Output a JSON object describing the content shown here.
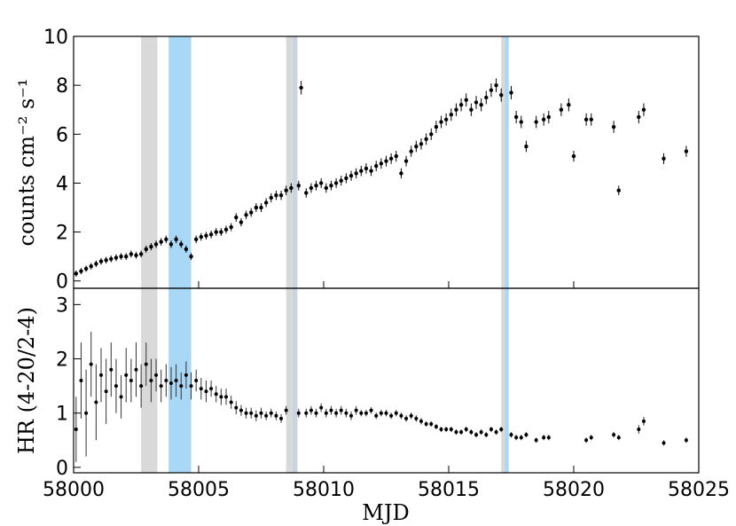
{
  "chart_data": [
    {
      "type": "scatter",
      "panel": "top",
      "ylabel": "counts cm⁻² s⁻¹",
      "xlim": [
        58000,
        58025
      ],
      "ylim": [
        -0.3,
        10
      ],
      "yticks": [
        0,
        2,
        4,
        6,
        8,
        10
      ],
      "marker_color": "#000000",
      "bands": [
        {
          "x0": 58002.7,
          "x1": 58003.35,
          "color": "#d9d9d9"
        },
        {
          "x0": 58003.8,
          "x1": 58004.7,
          "color": "#a8d8f5"
        },
        {
          "x0": 58008.5,
          "x1": 58008.75,
          "color": "#d9d9d9"
        },
        {
          "x0": 58008.75,
          "x1": 58008.95,
          "color": "#c8d4e0"
        },
        {
          "x0": 58017.1,
          "x1": 58017.25,
          "color": "#d9d9d9"
        },
        {
          "x0": 58017.25,
          "x1": 58017.4,
          "color": "#a8d8f5"
        }
      ],
      "series": [
        {
          "x": [
            58000.1,
            58000.3,
            58000.5,
            58000.7,
            58000.9,
            58001.1,
            58001.3,
            58001.5,
            58001.7,
            58001.9,
            58002.1,
            58002.3,
            58002.5,
            58002.7,
            58002.9,
            58003.1,
            58003.3,
            58003.5,
            58003.7,
            58003.9,
            58004.1,
            58004.3,
            58004.5,
            58004.7,
            58004.9,
            58005.1,
            58005.3,
            58005.5,
            58005.7,
            58005.9,
            58006.1,
            58006.3,
            58006.5,
            58006.7,
            58006.9,
            58007.1,
            58007.3,
            58007.5,
            58007.7,
            58007.9,
            58008.1,
            58008.3,
            58008.5,
            58008.7,
            58009.0,
            58009.1,
            58009.3,
            58009.5,
            58009.7,
            58009.9,
            58010.1,
            58010.3,
            58010.5,
            58010.7,
            58010.9,
            58011.1,
            58011.3,
            58011.5,
            58011.7,
            58011.9,
            58012.1,
            58012.3,
            58012.5,
            58012.7,
            58012.9,
            58013.1,
            58013.3,
            58013.5,
            58013.7,
            58013.9,
            58014.1,
            58014.3,
            58014.5,
            58014.7,
            58014.9,
            58015.1,
            58015.3,
            58015.5,
            58015.7,
            58015.9,
            58016.1,
            58016.3,
            58016.5,
            58016.7,
            58016.9,
            58017.1,
            58017.5,
            58017.7,
            58017.9,
            58018.1,
            58018.5,
            58018.8,
            58019.0,
            58019.5,
            58019.8,
            58020.0,
            58020.5,
            58020.7,
            58021.6,
            58021.8,
            58022.6,
            58022.8,
            58023.6,
            58024.5
          ],
          "y": [
            0.3,
            0.4,
            0.5,
            0.6,
            0.7,
            0.8,
            0.85,
            0.9,
            0.95,
            1.0,
            1.0,
            1.1,
            1.05,
            1.1,
            1.3,
            1.4,
            1.5,
            1.6,
            1.7,
            1.5,
            1.7,
            1.5,
            1.3,
            1.0,
            1.7,
            1.8,
            1.85,
            1.9,
            2.0,
            2.0,
            2.1,
            2.2,
            2.6,
            2.4,
            2.7,
            2.8,
            3.0,
            3.0,
            3.2,
            3.4,
            3.5,
            3.5,
            3.7,
            3.8,
            3.9,
            7.9,
            3.6,
            3.8,
            3.9,
            4.0,
            3.8,
            3.9,
            4.0,
            4.1,
            4.2,
            4.3,
            4.4,
            4.5,
            4.6,
            4.5,
            4.7,
            4.8,
            4.9,
            5.0,
            5.1,
            4.4,
            4.9,
            5.3,
            5.5,
            5.6,
            5.8,
            6.0,
            6.3,
            6.5,
            6.6,
            6.8,
            7.0,
            7.2,
            7.4,
            7.0,
            7.3,
            7.2,
            7.5,
            7.8,
            8.0,
            7.6,
            7.7,
            6.7,
            6.5,
            5.5,
            6.5,
            6.6,
            6.7,
            7.0,
            7.2,
            5.1,
            6.6,
            6.6,
            6.3,
            3.7,
            6.7,
            7.0,
            5.0,
            5.3
          ]
        }
      ]
    },
    {
      "type": "scatter",
      "panel": "bottom",
      "xlabel": "MJD",
      "ylabel": "HR (4-20/2-4)",
      "xlim": [
        58000,
        58025
      ],
      "ylim": [
        -0.1,
        3.3
      ],
      "yticks": [
        0,
        1,
        2,
        3
      ],
      "xticks": [
        58000,
        58005,
        58010,
        58015,
        58020,
        58025
      ],
      "marker_color": "#000000",
      "series": [
        {
          "x": [
            58000.1,
            58000.3,
            58000.5,
            58000.7,
            58000.9,
            58001.1,
            58001.3,
            58001.5,
            58001.7,
            58001.9,
            58002.1,
            58002.3,
            58002.5,
            58002.7,
            58002.9,
            58003.1,
            58003.3,
            58003.5,
            58003.7,
            58003.9,
            58004.1,
            58004.3,
            58004.5,
            58004.7,
            58004.9,
            58005.1,
            58005.3,
            58005.5,
            58005.7,
            58005.9,
            58006.1,
            58006.3,
            58006.5,
            58006.7,
            58006.9,
            58007.1,
            58007.3,
            58007.5,
            58007.7,
            58007.9,
            58008.1,
            58008.3,
            58008.5,
            58009.0,
            58009.3,
            58009.5,
            58009.7,
            58009.9,
            58010.1,
            58010.3,
            58010.5,
            58010.7,
            58010.9,
            58011.1,
            58011.3,
            58011.5,
            58011.7,
            58011.9,
            58012.1,
            58012.3,
            58012.5,
            58012.7,
            58012.9,
            58013.1,
            58013.3,
            58013.5,
            58013.7,
            58013.9,
            58014.1,
            58014.3,
            58014.5,
            58014.7,
            58014.9,
            58015.1,
            58015.3,
            58015.5,
            58015.7,
            58015.9,
            58016.1,
            58016.3,
            58016.5,
            58016.7,
            58016.9,
            58017.1,
            58017.5,
            58017.7,
            58017.9,
            58018.1,
            58018.5,
            58018.8,
            58019.0,
            58020.5,
            58020.7,
            58021.6,
            58021.8,
            58022.6,
            58022.8,
            58023.6,
            58024.5
          ],
          "y": [
            0.7,
            1.6,
            1.0,
            1.9,
            1.2,
            1.7,
            1.4,
            1.8,
            1.5,
            1.3,
            1.7,
            1.6,
            1.8,
            1.5,
            1.9,
            1.6,
            1.7,
            1.5,
            1.6,
            1.55,
            1.6,
            1.5,
            1.7,
            1.5,
            1.6,
            1.45,
            1.4,
            1.45,
            1.35,
            1.3,
            1.3,
            1.2,
            1.1,
            1.05,
            1.0,
            1.0,
            0.95,
            1.0,
            0.95,
            1.0,
            0.95,
            0.9,
            1.05,
            1.0,
            1.0,
            1.05,
            1.0,
            1.1,
            1.0,
            1.05,
            1.0,
            1.05,
            1.0,
            0.95,
            1.05,
            1.0,
            1.0,
            1.05,
            0.95,
            1.0,
            1.0,
            0.95,
            1.0,
            0.95,
            0.9,
            0.95,
            0.9,
            0.85,
            0.8,
            0.8,
            0.75,
            0.7,
            0.7,
            0.7,
            0.65,
            0.65,
            0.7,
            0.65,
            0.6,
            0.65,
            0.6,
            0.7,
            0.65,
            0.7,
            0.6,
            0.55,
            0.55,
            0.6,
            0.5,
            0.55,
            0.55,
            0.5,
            0.55,
            0.6,
            0.55,
            0.7,
            0.85,
            0.45,
            0.5
          ],
          "err": [
            0.6,
            0.7,
            0.8,
            0.6,
            0.7,
            0.5,
            0.6,
            0.5,
            0.5,
            0.4,
            0.5,
            0.4,
            0.5,
            0.4,
            0.4,
            0.4,
            0.3,
            0.3,
            0.3,
            0.3,
            0.3,
            0.25,
            0.25,
            0.25,
            0.2,
            0.2,
            0.2,
            0.15,
            0.15,
            0.15,
            0.15,
            0.12,
            0.12,
            0.1,
            0.1,
            0.1,
            0.1,
            0.1,
            0.08,
            0.08,
            0.08,
            0.08,
            0.08,
            0.08,
            0.08,
            0.08,
            0.08,
            0.08,
            0.08,
            0.08,
            0.08,
            0.08,
            0.08,
            0.08,
            0.08,
            0.06,
            0.06,
            0.06,
            0.06,
            0.06,
            0.06,
            0.06,
            0.06,
            0.06,
            0.06,
            0.06,
            0.06,
            0.06,
            0.05,
            0.05,
            0.05,
            0.05,
            0.05,
            0.05,
            0.05,
            0.05,
            0.05,
            0.05,
            0.05,
            0.05,
            0.05,
            0.05,
            0.05,
            0.05,
            0.05,
            0.05,
            0.05,
            0.05,
            0.05,
            0.05,
            0.05,
            0.05,
            0.05,
            0.05,
            0.05,
            0.08,
            0.08,
            0.05,
            0.05
          ]
        }
      ]
    }
  ]
}
